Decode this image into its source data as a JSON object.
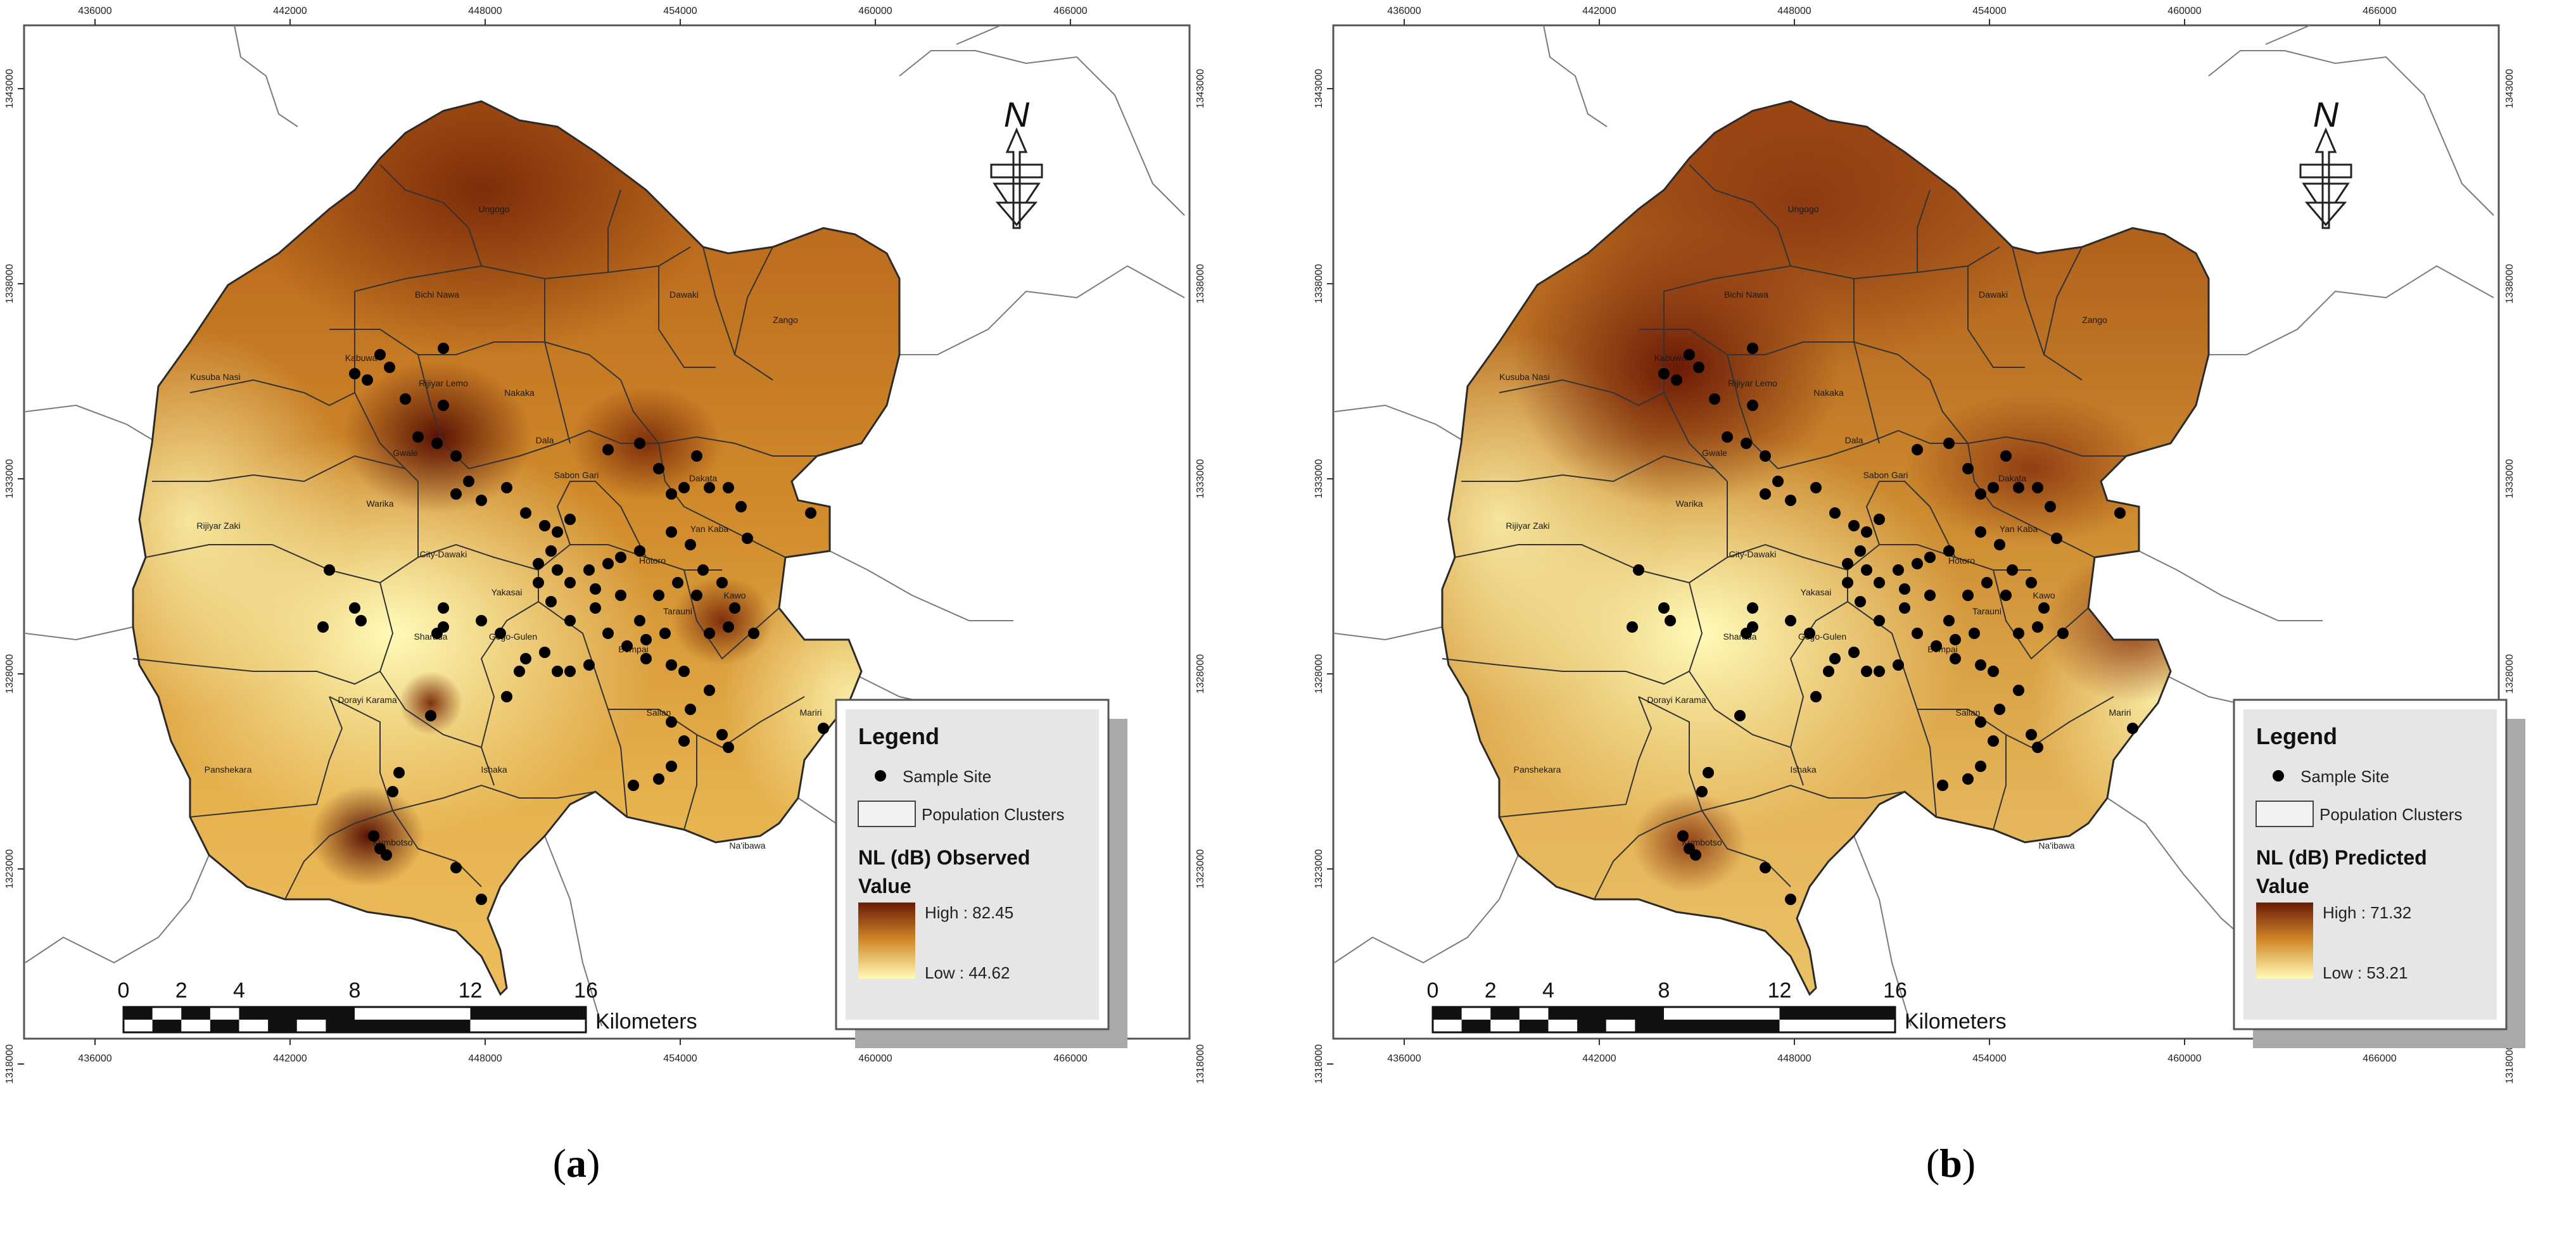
{
  "figure": {
    "captions": [
      "a",
      "b"
    ]
  },
  "panels": [
    {
      "id": "a",
      "x_ticks": [
        "436000",
        "442000",
        "448000",
        "454000",
        "460000",
        "466000"
      ],
      "y_ticks": [
        "1343000",
        "1338000",
        "1333000",
        "1328000",
        "1323000",
        "1318000"
      ],
      "legend": {
        "title": "Legend",
        "sample_site": "Sample Site",
        "population_clusters": "Population Clusters",
        "field": "NL (dB) Observed",
        "value_label": "Value",
        "high": "High : 82.45",
        "low": "Low : 44.62"
      },
      "scale_bar": {
        "labels": [
          "0",
          "2",
          "4",
          "8",
          "12",
          "16"
        ],
        "unit": "Kilometers"
      },
      "north": "N"
    },
    {
      "id": "b",
      "x_ticks": [
        "436000",
        "442000",
        "448000",
        "454000",
        "460000",
        "466000"
      ],
      "y_ticks": [
        "1343000",
        "1338000",
        "1333000",
        "1328000",
        "1323000",
        "1318000"
      ],
      "legend": {
        "title": "Legend",
        "sample_site": "Sample Site",
        "population_clusters": "Population Clusters",
        "field": "NL (dB) Predicted",
        "value_label": "Value",
        "high": "High : 71.32",
        "low": "Low : 53.21"
      },
      "scale_bar": {
        "labels": [
          "0",
          "2",
          "4",
          "8",
          "12",
          "16"
        ],
        "unit": "Kilometers"
      },
      "north": "N"
    }
  ],
  "place_labels": [
    "Ungogo",
    "Bichi Nawa",
    "Dawaki",
    "Zango",
    "Kabuwa",
    "Kusuba Nasi",
    "Rijiyar Lemo",
    "Nakaka",
    "Rijiyar Zaki",
    "Sabon Gari",
    "Dakata",
    "Warika",
    "City-Dawaki",
    "Tarauni",
    "Gogo-Gulen",
    "Sharada",
    "Bompai",
    "Sallan",
    "Dorayi Karama",
    "Panshekara",
    "Ishaka",
    "Kawo",
    "Mariri",
    "Na'ibawa",
    "Kumbotso",
    "Gwale",
    "Yan Kaba",
    "Dala",
    "Yakasai",
    "Hotoro"
  ],
  "map_style": {
    "high_color": "#6b1a06",
    "mid_color": "#c47e22",
    "low_color": "#fff8b0",
    "boundary_color": "#303030",
    "site_color": "#000000"
  }
}
